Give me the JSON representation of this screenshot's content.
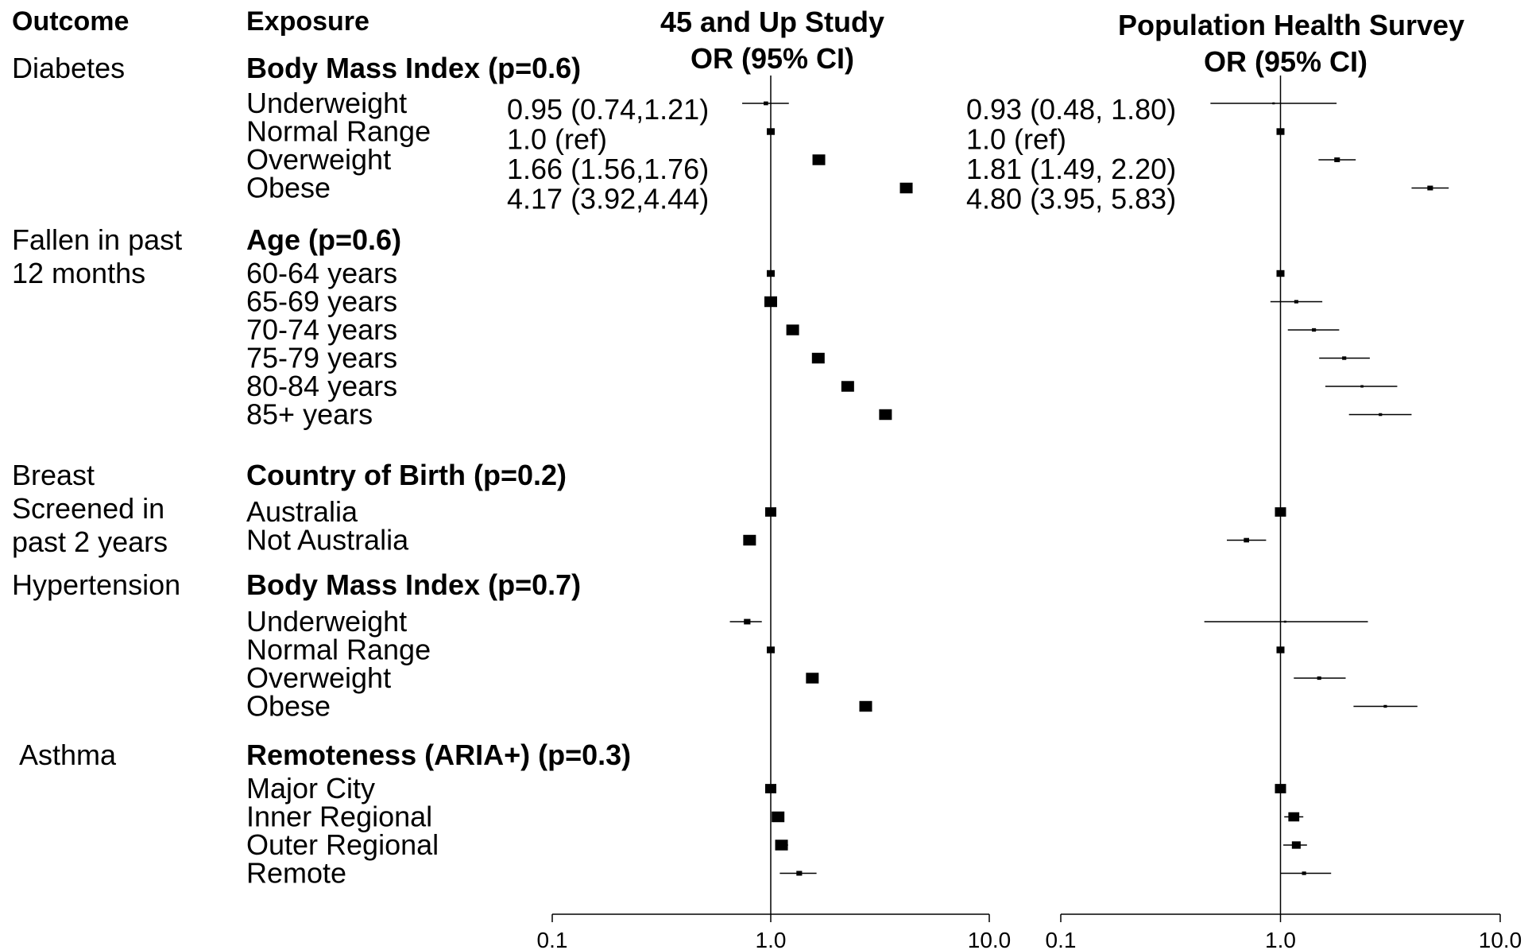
{
  "headers": {
    "outcome": "Outcome",
    "exposure": "Exposure"
  },
  "chart_data": {
    "type": "forest",
    "scale": "log",
    "xlim": [
      0.1,
      10.0
    ],
    "ticks": [
      "0.1",
      "1.0",
      "10.0"
    ],
    "panels": [
      {
        "title_line1": "45 and Up Study",
        "title_line2": "OR (95% CI)"
      },
      {
        "title_line1": "Population Health Survey",
        "title_line2": "OR (95% CI)"
      }
    ],
    "groups": [
      {
        "outcome": [
          "Diabetes"
        ],
        "exposure": "Body Mass Index",
        "pvalue": "(p=0.6)",
        "rows": [
          {
            "label": "Underweight",
            "a": {
              "or": 0.95,
              "lo": 0.74,
              "hi": 1.21,
              "text": "0.95 (0.74,1.21)"
            },
            "b": {
              "or": 0.93,
              "lo": 0.48,
              "hi": 1.8,
              "text": "0.93 (0.48, 1.80)"
            }
          },
          {
            "label": "Normal Range",
            "a": {
              "or": 1.0,
              "lo": 1.0,
              "hi": 1.0,
              "text": "1.0 (ref)"
            },
            "b": {
              "or": 1.0,
              "lo": 1.0,
              "hi": 1.0,
              "text": "1.0 (ref)"
            }
          },
          {
            "label": "Overweight",
            "a": {
              "or": 1.66,
              "lo": 1.56,
              "hi": 1.76,
              "text": "1.66 (1.56,1.76)"
            },
            "b": {
              "or": 1.81,
              "lo": 1.49,
              "hi": 2.2,
              "text": "1.81 (1.49, 2.20)"
            }
          },
          {
            "label": "Obese",
            "a": {
              "or": 4.17,
              "lo": 3.92,
              "hi": 4.44,
              "text": "4.17 (3.92,4.44)"
            },
            "b": {
              "or": 4.8,
              "lo": 3.95,
              "hi": 5.83,
              "text": "4.80 (3.95, 5.83)"
            }
          }
        ]
      },
      {
        "outcome": [
          "Fallen in past",
          "12 months"
        ],
        "exposure": "Age",
        "pvalue": "(p=0.6)",
        "rows": [
          {
            "label": "60-64 years",
            "a": {
              "or": 1.0,
              "lo": 1.0,
              "hi": 1.0
            },
            "b": {
              "or": 1.0,
              "lo": 1.0,
              "hi": 1.0
            }
          },
          {
            "label": "65-69 years",
            "a": {
              "or": 1.0,
              "lo": 0.96,
              "hi": 1.05
            },
            "b": {
              "or": 1.18,
              "lo": 0.9,
              "hi": 1.55
            }
          },
          {
            "label": "70-74 years",
            "a": {
              "or": 1.26,
              "lo": 1.2,
              "hi": 1.33
            },
            "b": {
              "or": 1.42,
              "lo": 1.08,
              "hi": 1.85
            }
          },
          {
            "label": "75-79 years",
            "a": {
              "or": 1.65,
              "lo": 1.57,
              "hi": 1.74
            },
            "b": {
              "or": 1.95,
              "lo": 1.5,
              "hi": 2.55
            }
          },
          {
            "label": "80-84 years",
            "a": {
              "or": 2.25,
              "lo": 2.14,
              "hi": 2.37
            },
            "b": {
              "or": 2.35,
              "lo": 1.6,
              "hi": 3.4
            }
          },
          {
            "label": "85+ years",
            "a": {
              "or": 3.35,
              "lo": 3.15,
              "hi": 3.55
            },
            "b": {
              "or": 2.85,
              "lo": 2.05,
              "hi": 3.95
            }
          }
        ]
      },
      {
        "outcome": [
          "Breast",
          "Screened in",
          "past 2 years"
        ],
        "exposure": "Country of Birth",
        "pvalue": "(p=0.2)",
        "rows": [
          {
            "label": "Australia",
            "a": {
              "or": 1.0,
              "lo": 1.0,
              "hi": 1.0
            },
            "b": {
              "or": 1.0,
              "lo": 1.0,
              "hi": 1.0
            }
          },
          {
            "label": "Not Australia",
            "a": {
              "or": 0.8,
              "lo": 0.77,
              "hi": 0.83
            },
            "b": {
              "or": 0.7,
              "lo": 0.57,
              "hi": 0.86
            }
          }
        ]
      },
      {
        "outcome": [
          "Hypertension"
        ],
        "exposure": "Body Mass Index",
        "pvalue": "(p=0.7)",
        "rows": [
          {
            "label": "Underweight",
            "a": {
              "or": 0.78,
              "lo": 0.65,
              "hi": 0.91
            },
            "b": {
              "or": 1.05,
              "lo": 0.45,
              "hi": 2.5
            }
          },
          {
            "label": "Normal Range",
            "a": {
              "or": 1.0,
              "lo": 1.0,
              "hi": 1.0
            },
            "b": {
              "or": 1.0,
              "lo": 1.0,
              "hi": 1.0
            }
          },
          {
            "label": "Overweight",
            "a": {
              "or": 1.55,
              "lo": 1.49,
              "hi": 1.61
            },
            "b": {
              "or": 1.5,
              "lo": 1.15,
              "hi": 1.98
            }
          },
          {
            "label": "Obese",
            "a": {
              "or": 2.72,
              "lo": 2.6,
              "hi": 2.85
            },
            "b": {
              "or": 3.0,
              "lo": 2.15,
              "hi": 4.2
            }
          }
        ]
      },
      {
        "outcome": [
          "Asthma"
        ],
        "exposure": "Remoteness (ARIA+)",
        "pvalue": "(p=0.3)",
        "rows": [
          {
            "label": "Major City",
            "a": {
              "or": 1.0,
              "lo": 1.0,
              "hi": 1.0
            },
            "b": {
              "or": 1.0,
              "lo": 1.0,
              "hi": 1.0
            }
          },
          {
            "label": "Inner Regional",
            "a": {
              "or": 1.08,
              "lo": 1.04,
              "hi": 1.12
            },
            "b": {
              "or": 1.15,
              "lo": 1.04,
              "hi": 1.27
            }
          },
          {
            "label": "Outer Regional",
            "a": {
              "or": 1.12,
              "lo": 1.05,
              "hi": 1.2
            },
            "b": {
              "or": 1.18,
              "lo": 1.03,
              "hi": 1.32
            }
          },
          {
            "label": "Remote",
            "a": {
              "or": 1.35,
              "lo": 1.1,
              "hi": 1.62
            },
            "b": {
              "or": 1.28,
              "lo": 1.0,
              "hi": 1.7
            }
          }
        ]
      }
    ]
  }
}
